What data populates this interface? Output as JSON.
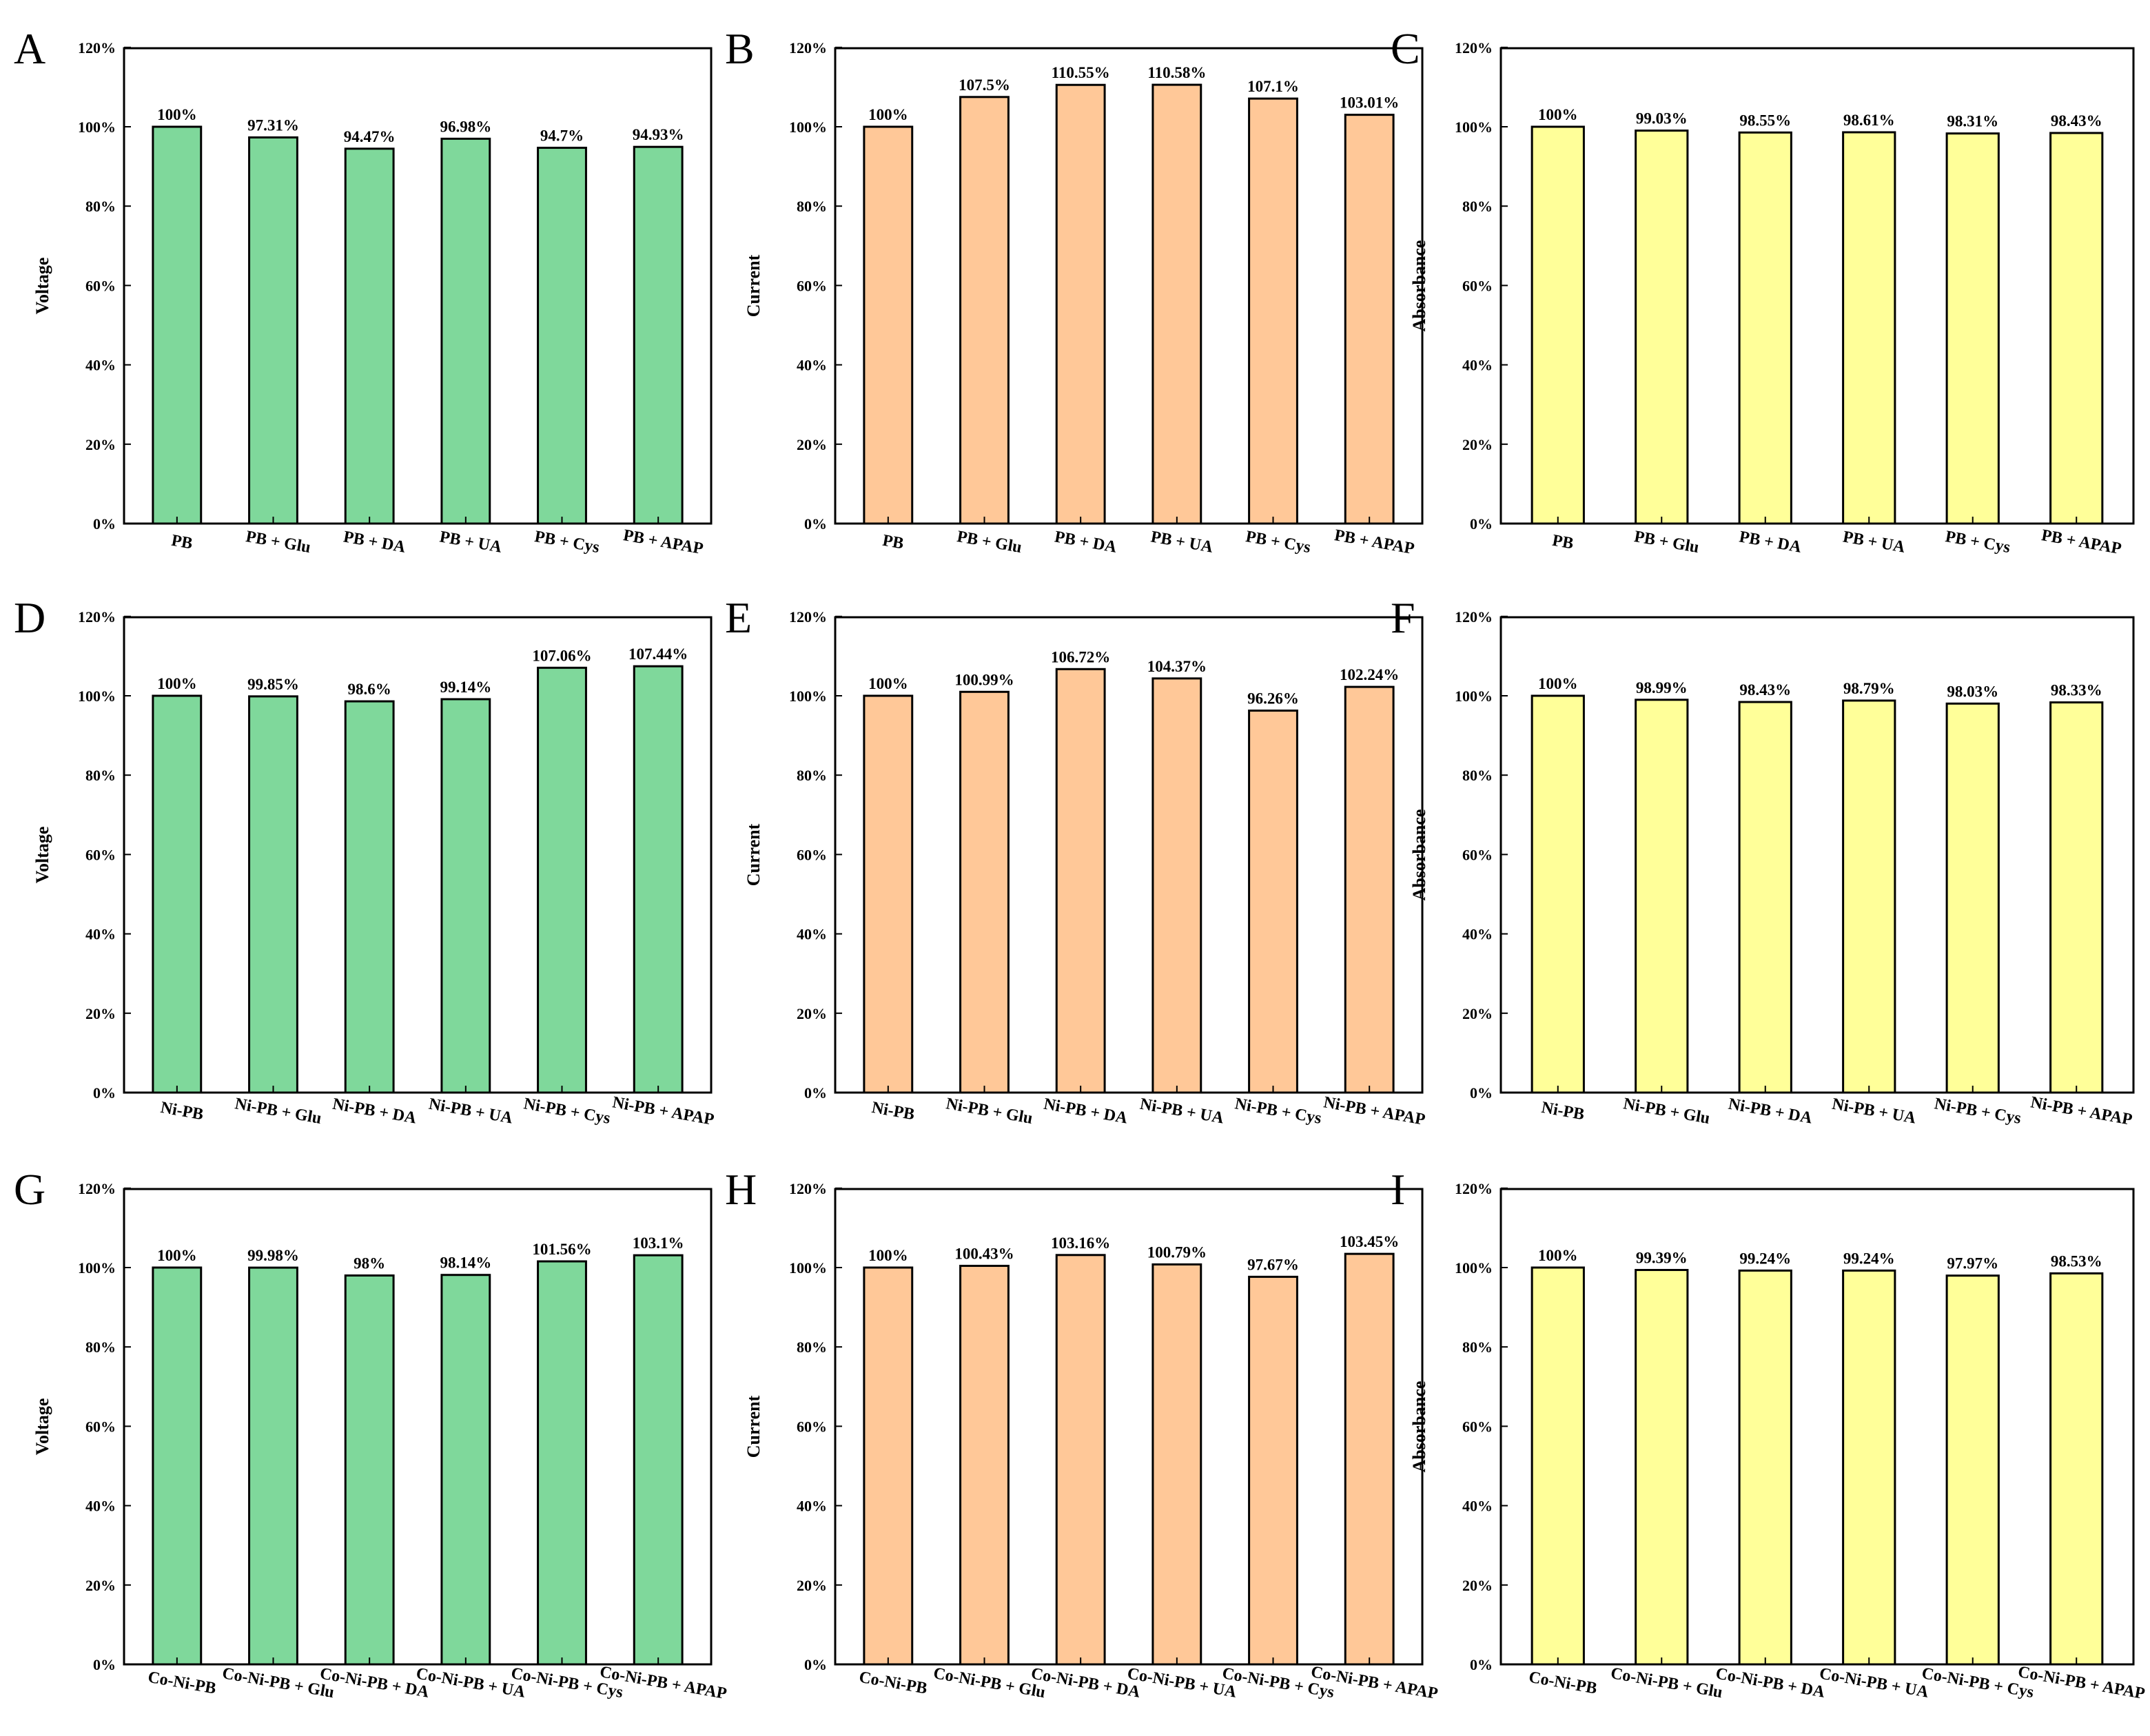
{
  "colors": {
    "voltage_bar": "#7fd89b",
    "current_bar": "#ffc898",
    "absorbance_bar": "#ffff99",
    "outline": "#000000"
  },
  "chart_data": [
    {
      "panel": "A",
      "type": "bar",
      "ylabel": "Voltage",
      "ylim": [
        0,
        120
      ],
      "yticks": [
        "0%",
        "20%",
        "40%",
        "60%",
        "80%",
        "100%",
        "120%"
      ],
      "categories": [
        "PB",
        "PB + Glu",
        "PB + DA",
        "PB + UA",
        "PB + Cys",
        "PB + APAP"
      ],
      "values": [
        100,
        97.31,
        94.47,
        96.98,
        94.7,
        94.93
      ],
      "value_labels": [
        "100%",
        "97.31%",
        "94.47%",
        "96.98%",
        "94.7%",
        "94.93%"
      ],
      "color": "#7fd89b"
    },
    {
      "panel": "B",
      "type": "bar",
      "ylabel": "Current",
      "ylim": [
        0,
        120
      ],
      "yticks": [
        "0%",
        "20%",
        "40%",
        "60%",
        "80%",
        "100%",
        "120%"
      ],
      "categories": [
        "PB",
        "PB + Glu",
        "PB + DA",
        "PB + UA",
        "PB + Cys",
        "PB + APAP"
      ],
      "values": [
        100,
        107.5,
        110.55,
        110.58,
        107.1,
        103.01
      ],
      "value_labels": [
        "100%",
        "107.5%",
        "110.55%",
        "110.58%",
        "107.1%",
        "103.01%"
      ],
      "color": "#ffc898"
    },
    {
      "panel": "C",
      "type": "bar",
      "ylabel": "Absorbance",
      "ylim": [
        0,
        120
      ],
      "yticks": [
        "0%",
        "20%",
        "40%",
        "60%",
        "80%",
        "100%",
        "120%"
      ],
      "categories": [
        "PB",
        "PB + Glu",
        "PB + DA",
        "PB + UA",
        "PB + Cys",
        "PB + APAP"
      ],
      "values": [
        100,
        99.03,
        98.55,
        98.61,
        98.31,
        98.43
      ],
      "value_labels": [
        "100%",
        "99.03%",
        "98.55%",
        "98.61%",
        "98.31%",
        "98.43%"
      ],
      "color": "#ffff99"
    },
    {
      "panel": "D",
      "type": "bar",
      "ylabel": "Voltage",
      "ylim": [
        0,
        120
      ],
      "yticks": [
        "0%",
        "20%",
        "40%",
        "60%",
        "80%",
        "100%",
        "120%"
      ],
      "categories": [
        "Ni-PB",
        "Ni-PB + Glu",
        "Ni-PB + DA",
        "Ni-PB + UA",
        "Ni-PB + Cys",
        "Ni-PB + APAP"
      ],
      "values": [
        100,
        99.85,
        98.6,
        99.14,
        107.06,
        107.44
      ],
      "value_labels": [
        "100%",
        "99.85%",
        "98.6%",
        "99.14%",
        "107.06%",
        "107.44%"
      ],
      "color": "#7fd89b"
    },
    {
      "panel": "E",
      "type": "bar",
      "ylabel": "Current",
      "ylim": [
        0,
        120
      ],
      "yticks": [
        "0%",
        "20%",
        "40%",
        "60%",
        "80%",
        "100%",
        "120%"
      ],
      "categories": [
        "Ni-PB",
        "Ni-PB + Glu",
        "Ni-PB + DA",
        "Ni-PB + UA",
        "Ni-PB + Cys",
        "Ni-PB + APAP"
      ],
      "values": [
        100,
        100.99,
        106.72,
        104.37,
        96.26,
        102.24
      ],
      "value_labels": [
        "100%",
        "100.99%",
        "106.72%",
        "104.37%",
        "96.26%",
        "102.24%"
      ],
      "color": "#ffc898"
    },
    {
      "panel": "F",
      "type": "bar",
      "ylabel": "Absorbance",
      "ylim": [
        0,
        120
      ],
      "yticks": [
        "0%",
        "20%",
        "40%",
        "60%",
        "80%",
        "100%",
        "120%"
      ],
      "categories": [
        "Ni-PB",
        "Ni-PB + Glu",
        "Ni-PB + DA",
        "Ni-PB + UA",
        "Ni-PB + Cys",
        "Ni-PB + APAP"
      ],
      "values": [
        100,
        98.99,
        98.43,
        98.79,
        98.03,
        98.33
      ],
      "value_labels": [
        "100%",
        "98.99%",
        "98.43%",
        "98.79%",
        "98.03%",
        "98.33%"
      ],
      "color": "#ffff99"
    },
    {
      "panel": "G",
      "type": "bar",
      "ylabel": "Voltage",
      "ylim": [
        0,
        120
      ],
      "yticks": [
        "0%",
        "20%",
        "40%",
        "60%",
        "80%",
        "100%",
        "120%"
      ],
      "categories": [
        "Co-Ni-PB",
        "Co-Ni-PB + Glu",
        "Co-Ni-PB + DA",
        "Co-Ni-PB + UA",
        "Co-Ni-PB + Cys",
        "Co-Ni-PB + APAP"
      ],
      "values": [
        100,
        99.98,
        98,
        98.14,
        101.56,
        103.1
      ],
      "value_labels": [
        "100%",
        "99.98%",
        "98%",
        "98.14%",
        "101.56%",
        "103.1%"
      ],
      "color": "#7fd89b"
    },
    {
      "panel": "H",
      "type": "bar",
      "ylabel": "Current",
      "ylim": [
        0,
        120
      ],
      "yticks": [
        "0%",
        "20%",
        "40%",
        "60%",
        "80%",
        "100%",
        "120%"
      ],
      "categories": [
        "Co-Ni-PB",
        "Co-Ni-PB + Glu",
        "Co-Ni-PB + DA",
        "Co-Ni-PB + UA",
        "Co-Ni-PB + Cys",
        "Co-Ni-PB + APAP"
      ],
      "values": [
        100,
        100.43,
        103.16,
        100.79,
        97.67,
        103.45
      ],
      "value_labels": [
        "100%",
        "100.43%",
        "103.16%",
        "100.79%",
        "97.67%",
        "103.45%"
      ],
      "color": "#ffc898"
    },
    {
      "panel": "I",
      "type": "bar",
      "ylabel": "Absorbance",
      "ylim": [
        0,
        120
      ],
      "yticks": [
        "0%",
        "20%",
        "40%",
        "60%",
        "80%",
        "100%",
        "120%"
      ],
      "categories": [
        "Co-Ni-PB",
        "Co-Ni-PB + Glu",
        "Co-Ni-PB + DA",
        "Co-Ni-PB + UA",
        "Co-Ni-PB + Cys",
        "Co-Ni-PB + APAP"
      ],
      "values": [
        100,
        99.39,
        99.24,
        99.24,
        97.97,
        98.53
      ],
      "value_labels": [
        "100%",
        "99.39%",
        "99.24%",
        "99.24%",
        "97.97%",
        "98.53%"
      ],
      "color": "#ffff99"
    }
  ]
}
